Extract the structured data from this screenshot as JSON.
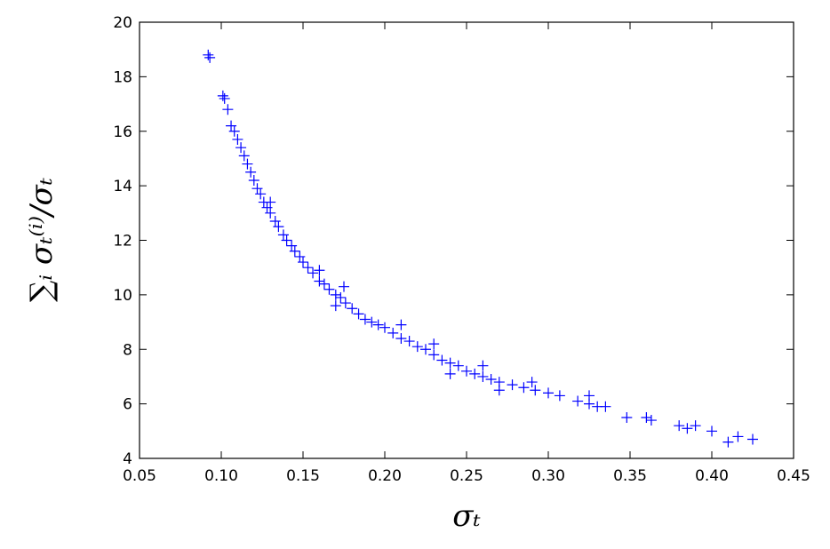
{
  "chart_data": {
    "type": "scatter",
    "xlabel": "σₜ",
    "ylabel": "∑ᵢ σₜ⁽ⁱ⁾/σₜ",
    "xlim": [
      0.05,
      0.45
    ],
    "ylim": [
      4,
      20
    ],
    "xticks": [
      0.05,
      {
        "value": 0.1,
        "label": "0.10"
      },
      0.15,
      {
        "value": 0.2,
        "label": "0.20"
      },
      0.25,
      {
        "value": 0.3,
        "label": "0.30"
      },
      0.35,
      {
        "value": 0.4,
        "label": "0.40"
      },
      0.45
    ],
    "yticks": [
      4,
      6,
      8,
      10,
      12,
      14,
      16,
      18,
      20
    ],
    "color": "#0000ff",
    "marker": "+",
    "grid": false,
    "x": [
      0.092,
      0.093,
      0.101,
      0.102,
      0.104,
      0.106,
      0.108,
      0.11,
      0.112,
      0.114,
      0.116,
      0.118,
      0.12,
      0.122,
      0.124,
      0.126,
      0.128,
      0.13,
      0.133,
      0.135,
      0.138,
      0.14,
      0.143,
      0.145,
      0.148,
      0.15,
      0.153,
      0.156,
      0.16,
      0.163,
      0.166,
      0.17,
      0.173,
      0.176,
      0.18,
      0.184,
      0.188,
      0.192,
      0.196,
      0.2,
      0.205,
      0.21,
      0.215,
      0.22,
      0.225,
      0.23,
      0.235,
      0.24,
      0.245,
      0.25,
      0.255,
      0.26,
      0.265,
      0.27,
      0.278,
      0.285,
      0.292,
      0.3,
      0.307,
      0.318,
      0.325,
      0.33,
      0.335,
      0.348,
      0.36,
      0.363,
      0.38,
      0.385,
      0.39,
      0.4,
      0.41,
      0.416,
      0.425,
      0.175,
      0.21,
      0.23,
      0.26,
      0.29,
      0.24,
      0.27,
      0.325,
      0.17,
      0.13,
      0.16
    ],
    "y": [
      18.8,
      18.7,
      17.3,
      17.2,
      16.8,
      16.2,
      16.0,
      15.7,
      15.4,
      15.1,
      14.8,
      14.5,
      14.2,
      13.9,
      13.7,
      13.4,
      13.2,
      13.0,
      12.7,
      12.5,
      12.2,
      12.0,
      11.8,
      11.6,
      11.4,
      11.2,
      11.0,
      10.8,
      10.5,
      10.4,
      10.2,
      10.0,
      9.9,
      9.7,
      9.5,
      9.3,
      9.1,
      9.0,
      8.9,
      8.8,
      8.6,
      8.4,
      8.3,
      8.1,
      8.0,
      7.8,
      7.6,
      7.5,
      7.4,
      7.2,
      7.1,
      7.0,
      6.9,
      6.8,
      6.7,
      6.6,
      6.5,
      6.4,
      6.3,
      6.1,
      6.0,
      5.9,
      5.9,
      5.5,
      5.5,
      5.4,
      5.2,
      5.1,
      5.2,
      5.0,
      4.6,
      4.8,
      4.7,
      10.3,
      8.9,
      8.2,
      7.4,
      6.8,
      7.1,
      6.5,
      6.3,
      9.6,
      13.4,
      10.9
    ]
  }
}
